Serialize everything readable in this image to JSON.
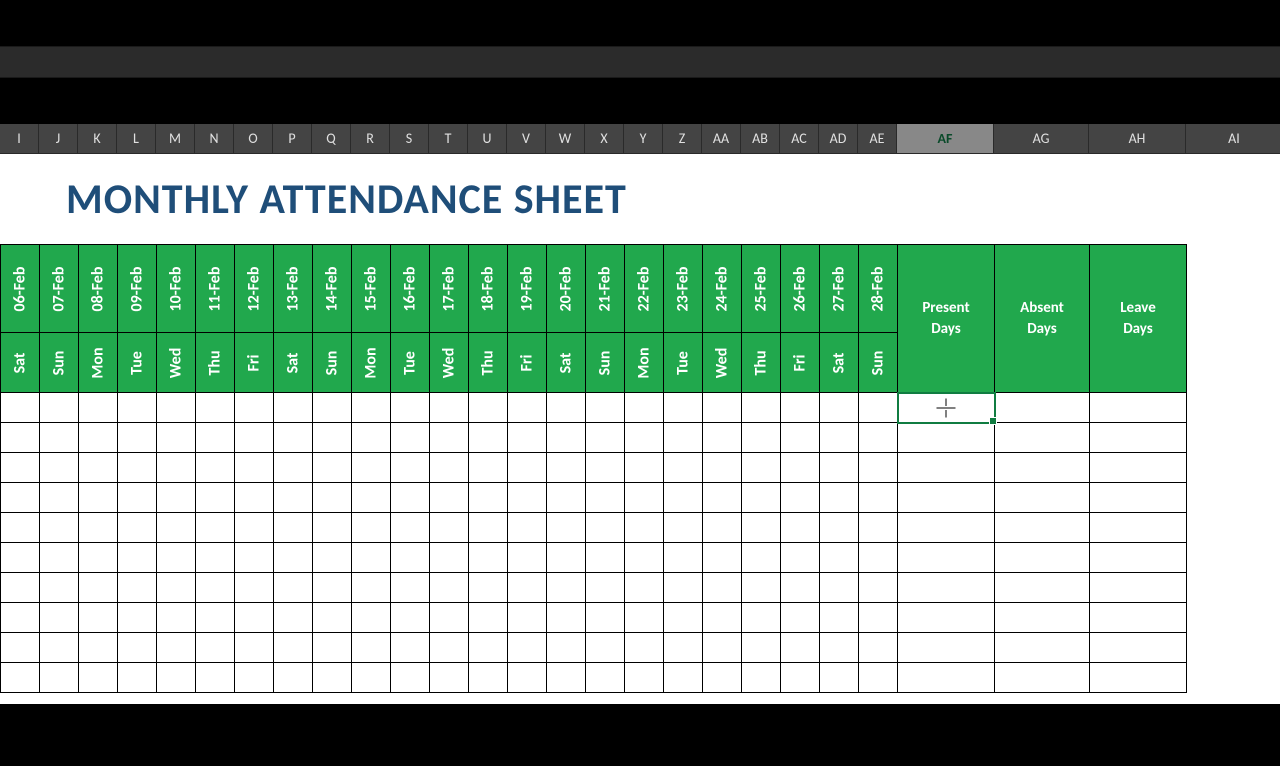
{
  "title": "MONTHLY ATTENDANCE SHEET",
  "selected_column": "AF",
  "column_letters": [
    "I",
    "J",
    "K",
    "L",
    "M",
    "N",
    "O",
    "P",
    "Q",
    "R",
    "S",
    "T",
    "U",
    "V",
    "W",
    "X",
    "Y",
    "Z",
    "AA",
    "AB",
    "AC",
    "AD",
    "AE",
    "AF",
    "AG",
    "AH",
    "AI"
  ],
  "narrow_widths": 39,
  "summary_widths": {
    "AF": 97,
    "AG": 95,
    "AH": 97,
    "AI": 97
  },
  "dates": [
    {
      "date": "06-Feb",
      "dow": "Sat"
    },
    {
      "date": "07-Feb",
      "dow": "Sun"
    },
    {
      "date": "08-Feb",
      "dow": "Mon"
    },
    {
      "date": "09-Feb",
      "dow": "Tue"
    },
    {
      "date": "10-Feb",
      "dow": "Wed"
    },
    {
      "date": "11-Feb",
      "dow": "Thu"
    },
    {
      "date": "12-Feb",
      "dow": "Fri"
    },
    {
      "date": "13-Feb",
      "dow": "Sat"
    },
    {
      "date": "14-Feb",
      "dow": "Sun"
    },
    {
      "date": "15-Feb",
      "dow": "Mon"
    },
    {
      "date": "16-Feb",
      "dow": "Tue"
    },
    {
      "date": "17-Feb",
      "dow": "Wed"
    },
    {
      "date": "18-Feb",
      "dow": "Thu"
    },
    {
      "date": "19-Feb",
      "dow": "Fri"
    },
    {
      "date": "20-Feb",
      "dow": "Sat"
    },
    {
      "date": "21-Feb",
      "dow": "Sun"
    },
    {
      "date": "22-Feb",
      "dow": "Mon"
    },
    {
      "date": "23-Feb",
      "dow": "Tue"
    },
    {
      "date": "24-Feb",
      "dow": "Wed"
    },
    {
      "date": "25-Feb",
      "dow": "Thu"
    },
    {
      "date": "26-Feb",
      "dow": "Fri"
    },
    {
      "date": "27-Feb",
      "dow": "Sat"
    },
    {
      "date": "28-Feb",
      "dow": "Sun"
    }
  ],
  "summary_headers": {
    "present": "Present Days",
    "absent": "Absent Days",
    "leave": "Leave Days"
  },
  "data_rows": 10,
  "colors": {
    "header_green": "#21a84d",
    "title_color": "#1f4e79",
    "selection_border": "#107c41",
    "col_head_bg": "#444444",
    "col_head_selected_bg": "#888888"
  }
}
